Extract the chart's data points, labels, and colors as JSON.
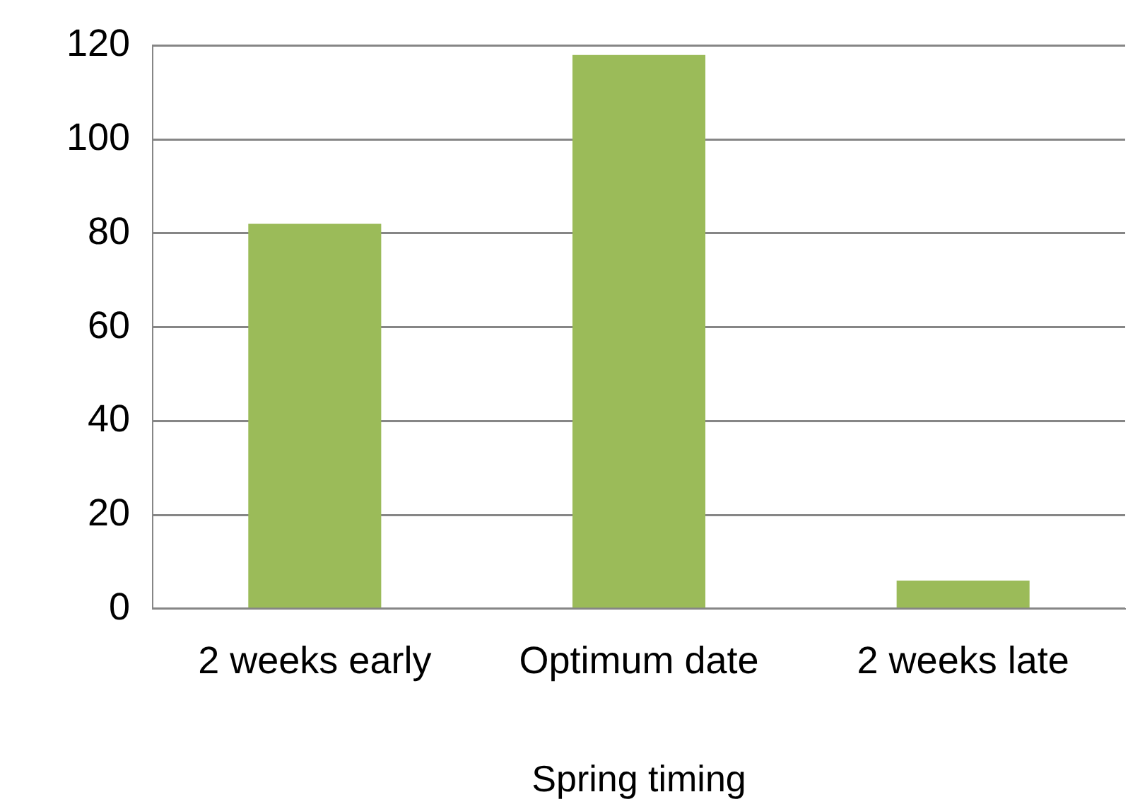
{
  "chart_data": {
    "type": "bar",
    "xlabel": "Spring timing",
    "categories": [
      "2 weeks early",
      "Optimum date",
      "2 weeks late"
    ],
    "values": [
      82,
      118,
      6
    ],
    "color": "#9bbb59",
    "ylim": [
      0,
      120
    ],
    "yticks": [
      0,
      20,
      40,
      60,
      80,
      100,
      120
    ],
    "grid": "y",
    "legend": false
  }
}
